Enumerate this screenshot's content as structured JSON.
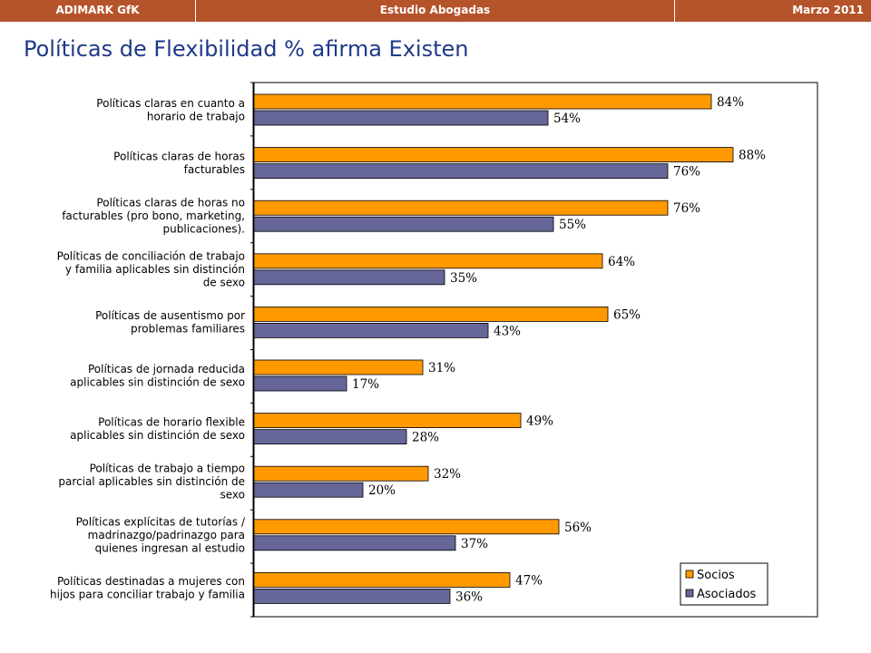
{
  "header": {
    "left": "ADIMARK GfK",
    "center": "Estudio Abogadas",
    "right": "Marzo 2011"
  },
  "page_title": "Políticas de Flexibilidad  % afirma Existen",
  "colors": {
    "header_bg": "#b5532a",
    "title": "#1f3a8a",
    "socios": "#ff9900",
    "asociados": "#666699"
  },
  "chart_data": {
    "type": "bar",
    "orientation": "horizontal",
    "title": "",
    "xlabel": "",
    "ylabel": "",
    "xlim": [
      0,
      100
    ],
    "grid": false,
    "legend_position": "bottom-right",
    "categories": [
      [
        "Políticas claras en cuanto a",
        "horario de trabajo"
      ],
      [
        "Políticas claras de horas",
        "facturables"
      ],
      [
        "Políticas claras de horas no",
        "facturables (pro bono, marketing,",
        "publicaciones)."
      ],
      [
        "Políticas de conciliación de trabajo",
        "y familia aplicables sin distinción",
        "de sexo"
      ],
      [
        "Políticas de ausentismo por",
        "problemas familiares"
      ],
      [
        "Políticas de jornada reducida",
        "aplicables sin distinción de sexo"
      ],
      [
        "Políticas de  horario flexible",
        "aplicables sin distinción de sexo"
      ],
      [
        "Políticas de trabajo a tiempo",
        "parcial aplicables sin distinción de",
        "sexo"
      ],
      [
        "Políticas explícitas de tutorías /",
        "madrinazgo/padrinazgo para",
        "quienes ingresan al estudio"
      ],
      [
        "Políticas destinadas a mujeres con",
        "hijos para conciliar trabajo y familia"
      ]
    ],
    "series": [
      {
        "name": "Socios",
        "values": [
          84,
          88,
          76,
          64,
          65,
          31,
          49,
          32,
          56,
          47
        ],
        "labels": [
          "84%",
          "88%",
          "76%",
          "64%",
          "65%",
          "31%",
          "49%",
          "32%",
          "56%",
          "47%"
        ]
      },
      {
        "name": "Asociados",
        "values": [
          54,
          76,
          55,
          35,
          43,
          17,
          28,
          20,
          37,
          36
        ],
        "labels": [
          "54%",
          "76%",
          "55%",
          "35%",
          "43%",
          "17%",
          "28%",
          "20%",
          "37%",
          "36%"
        ]
      }
    ]
  }
}
